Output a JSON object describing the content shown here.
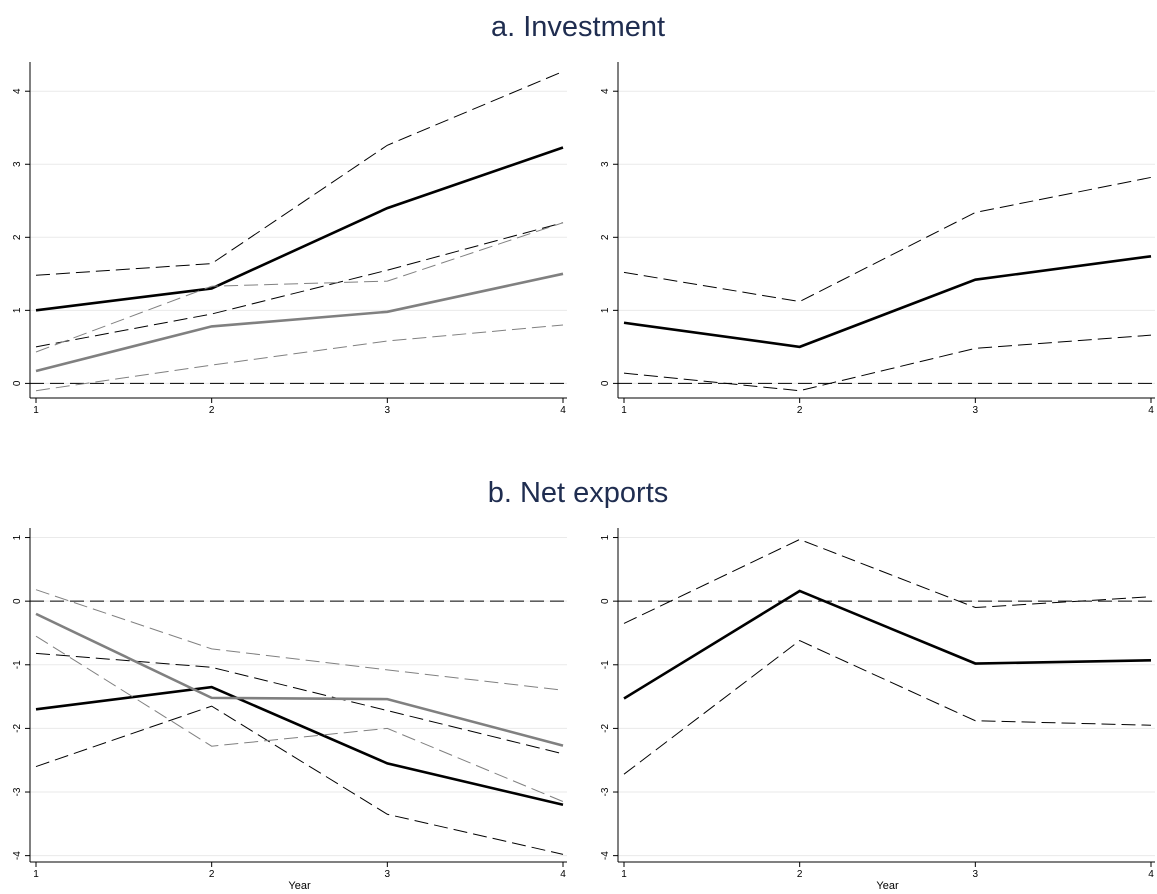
{
  "chart_data": [
    {
      "type": "line",
      "title": "a. Investment",
      "x": [
        1,
        2,
        3,
        4
      ],
      "xlim": [
        1,
        4
      ],
      "xticks": [
        1,
        2,
        3,
        4
      ],
      "ylim": [
        -0.2,
        4.4
      ],
      "yticks": [
        0,
        1,
        2,
        3,
        4
      ],
      "grid": true,
      "reference_line": 0,
      "series": [
        {
          "color": "#000000",
          "style": "solid",
          "values": [
            1.0,
            1.3,
            2.4,
            3.23
          ]
        },
        {
          "color": "#000000",
          "style": "dashed",
          "values": [
            1.48,
            1.64,
            3.26,
            4.27
          ]
        },
        {
          "color": "#000000",
          "style": "dashed",
          "values": [
            0.5,
            0.95,
            1.55,
            2.2
          ]
        },
        {
          "color": "#808080",
          "style": "solid",
          "values": [
            0.17,
            0.78,
            0.98,
            1.5
          ]
        },
        {
          "color": "#808080",
          "style": "dashed",
          "values": [
            0.43,
            1.33,
            1.4,
            2.2
          ]
        },
        {
          "color": "#808080",
          "style": "dashed",
          "values": [
            -0.1,
            0.25,
            0.58,
            0.8
          ]
        }
      ]
    },
    {
      "type": "line",
      "x": [
        1,
        2,
        3,
        4
      ],
      "xlim": [
        1,
        4
      ],
      "xticks": [
        1,
        2,
        3,
        4
      ],
      "ylim": [
        -0.2,
        4.4
      ],
      "yticks": [
        0,
        1,
        2,
        3,
        4
      ],
      "grid": true,
      "reference_line": 0,
      "series": [
        {
          "color": "#000000",
          "style": "solid",
          "values": [
            0.83,
            0.5,
            1.42,
            1.74
          ]
        },
        {
          "color": "#000000",
          "style": "dashed",
          "values": [
            1.52,
            1.12,
            2.34,
            2.82
          ]
        },
        {
          "color": "#000000",
          "style": "dashed",
          "values": [
            0.14,
            -0.1,
            0.48,
            0.66
          ]
        }
      ]
    },
    {
      "type": "line",
      "title": "b. Net exports",
      "xlabel": "Year",
      "x": [
        1,
        2,
        3,
        4
      ],
      "xlim": [
        1,
        4
      ],
      "xticks": [
        1,
        2,
        3,
        4
      ],
      "ylim": [
        -4.1,
        1.15
      ],
      "yticks": [
        -4,
        -3,
        -2,
        -1,
        0,
        1
      ],
      "grid": true,
      "reference_line": 0,
      "series": [
        {
          "color": "#000000",
          "style": "solid",
          "values": [
            -1.7,
            -1.35,
            -2.55,
            -3.2
          ]
        },
        {
          "color": "#000000",
          "style": "dashed",
          "values": [
            -0.82,
            -1.04,
            -1.72,
            -2.4
          ]
        },
        {
          "color": "#000000",
          "style": "dashed",
          "values": [
            -2.6,
            -1.65,
            -3.35,
            -3.98
          ]
        },
        {
          "color": "#808080",
          "style": "solid",
          "values": [
            -0.2,
            -1.52,
            -1.54,
            -2.27
          ]
        },
        {
          "color": "#808080",
          "style": "dashed",
          "values": [
            0.18,
            -0.75,
            -1.08,
            -1.4
          ]
        },
        {
          "color": "#808080",
          "style": "dashed",
          "values": [
            -0.55,
            -2.28,
            -2.0,
            -3.15
          ]
        }
      ]
    },
    {
      "type": "line",
      "xlabel": "Year",
      "x": [
        1,
        2,
        3,
        4
      ],
      "xlim": [
        1,
        4
      ],
      "xticks": [
        1,
        2,
        3,
        4
      ],
      "ylim": [
        -4.1,
        1.15
      ],
      "yticks": [
        -4,
        -3,
        -2,
        -1,
        0,
        1
      ],
      "grid": true,
      "reference_line": 0,
      "series": [
        {
          "color": "#000000",
          "style": "solid",
          "values": [
            -1.53,
            0.16,
            -0.98,
            -0.93
          ]
        },
        {
          "color": "#000000",
          "style": "dashed",
          "values": [
            -0.35,
            0.97,
            -0.1,
            0.07
          ]
        },
        {
          "color": "#000000",
          "style": "dashed",
          "values": [
            -2.72,
            -0.62,
            -1.88,
            -1.95
          ]
        }
      ]
    }
  ]
}
